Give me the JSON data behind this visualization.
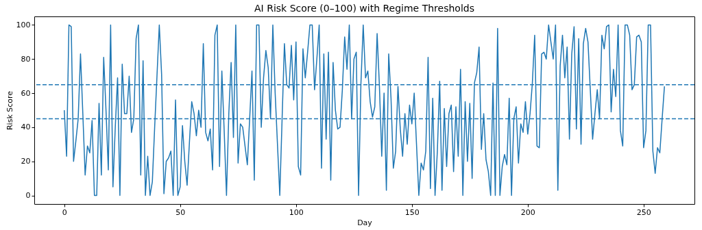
{
  "chart_data": {
    "type": "line",
    "title": "AI Risk Score (0–100) with Regime Thresholds",
    "xlabel": "Day",
    "ylabel": "Risk Score",
    "x": [
      0,
      1,
      2,
      3,
      4,
      5,
      6,
      7,
      8,
      9,
      10,
      11,
      12,
      13,
      14,
      15,
      16,
      17,
      18,
      19,
      20,
      21,
      22,
      23,
      24,
      25,
      26,
      27,
      28,
      29,
      30,
      31,
      32,
      33,
      34,
      35,
      36,
      37,
      38,
      39,
      40,
      41,
      42,
      43,
      44,
      45,
      46,
      47,
      48,
      49,
      50,
      51,
      52,
      53,
      54,
      55,
      56,
      57,
      58,
      59,
      60,
      61,
      62,
      63,
      64,
      65,
      66,
      67,
      68,
      69,
      70,
      71,
      72,
      73,
      74,
      75,
      76,
      77,
      78,
      79,
      80,
      81,
      82,
      83,
      84,
      85,
      86,
      87,
      88,
      89,
      90,
      91,
      92,
      93,
      94,
      95,
      96,
      97,
      98,
      99,
      100,
      101,
      102,
      103,
      104,
      105,
      106,
      107,
      108,
      109,
      110,
      111,
      112,
      113,
      114,
      115,
      116,
      117,
      118,
      119,
      120,
      121,
      122,
      123,
      124,
      125,
      126,
      127,
      128,
      129,
      130,
      131,
      132,
      133,
      134,
      135,
      136,
      137,
      138,
      139,
      140,
      141,
      142,
      143,
      144,
      145,
      146,
      147,
      148,
      149,
      150,
      151,
      152,
      153,
      154,
      155,
      156,
      157,
      158,
      159,
      160,
      161,
      162,
      163,
      164,
      165,
      166,
      167,
      168,
      169,
      170,
      171,
      172,
      173,
      174,
      175,
      176,
      177,
      178,
      179,
      180,
      181,
      182,
      183,
      184,
      185,
      186,
      187,
      188,
      189,
      190,
      191,
      192,
      193,
      194,
      195,
      196,
      197,
      198,
      199,
      200,
      201,
      202,
      203,
      204,
      205,
      206,
      207,
      208,
      209,
      210,
      211,
      212,
      213,
      214,
      215,
      216,
      217,
      218,
      219,
      220,
      221,
      222,
      223,
      224,
      225,
      226,
      227,
      228,
      229,
      230,
      231,
      232,
      233,
      234,
      235,
      236,
      237,
      238,
      239,
      240,
      241,
      242,
      243,
      244,
      245,
      246,
      247,
      248,
      249,
      250,
      251,
      252,
      253,
      254,
      255,
      256,
      257,
      258,
      259
    ],
    "series": [
      {
        "color": "#1f77b4",
        "values": [
          50,
          23,
          100,
          99,
          20,
          32,
          45,
          83,
          48,
          12,
          29,
          25,
          44,
          0,
          0,
          54,
          12,
          81,
          50,
          15,
          100,
          5,
          40,
          69,
          0,
          77,
          48,
          48,
          70,
          37,
          45,
          92,
          100,
          12,
          79,
          0,
          23,
          0,
          8,
          40,
          70,
          100,
          71,
          1,
          20,
          22,
          26,
          0,
          56,
          0,
          5,
          41,
          20,
          6,
          31,
          55,
          48,
          35,
          50,
          40,
          89,
          37,
          32,
          39,
          15,
          94,
          100,
          17,
          73,
          38,
          0,
          48,
          78,
          34,
          100,
          19,
          42,
          40,
          29,
          18,
          45,
          73,
          9,
          100,
          100,
          40,
          69,
          85,
          75,
          45,
          100,
          60,
          30,
          0,
          45,
          89,
          65,
          63,
          88,
          56,
          90,
          17,
          12,
          86,
          69,
          84,
          100,
          100,
          62,
          80,
          100,
          16,
          83,
          33,
          84,
          9,
          78,
          50,
          39,
          40,
          62,
          93,
          74,
          100,
          45,
          80,
          84,
          0,
          65,
          100,
          69,
          73,
          55,
          46,
          52,
          95,
          64,
          23,
          60,
          3,
          83,
          57,
          16,
          26,
          64,
          39,
          23,
          48,
          30,
          53,
          42,
          60,
          30,
          0,
          19,
          15,
          26,
          81,
          4,
          57,
          0,
          26,
          67,
          3,
          51,
          17,
          48,
          53,
          14,
          52,
          23,
          74,
          0,
          55,
          20,
          54,
          10,
          66,
          72,
          87,
          27,
          48,
          21,
          14,
          0,
          66,
          0,
          98,
          0,
          17,
          24,
          18,
          57,
          0,
          45,
          52,
          19,
          42,
          37,
          55,
          36,
          48,
          66,
          94,
          29,
          28,
          83,
          84,
          80,
          100,
          90,
          80,
          100,
          3,
          76,
          94,
          69,
          87,
          33,
          83,
          99,
          39,
          92,
          30,
          89,
          98,
          90,
          62,
          33,
          48,
          62,
          45,
          94,
          86,
          99,
          100,
          49,
          74,
          58,
          100,
          38,
          29,
          100,
          100,
          94,
          62,
          65,
          93,
          94,
          90,
          28,
          38,
          100,
          100,
          26,
          13,
          28,
          25,
          45,
          64
        ]
      }
    ],
    "ref_lines": [
      {
        "axis": "y",
        "value": 65,
        "color": "#1f77b4",
        "line_style": "dashed"
      },
      {
        "axis": "y",
        "value": 45,
        "color": "#1f77b4",
        "line_style": "dashed"
      }
    ],
    "xlim": [
      -12.95,
      271.95
    ],
    "xticks": [
      0,
      50,
      100,
      150,
      200,
      250
    ],
    "ylim": [
      -5,
      105
    ],
    "yticks": [
      0,
      20,
      40,
      60,
      80,
      100
    ]
  }
}
